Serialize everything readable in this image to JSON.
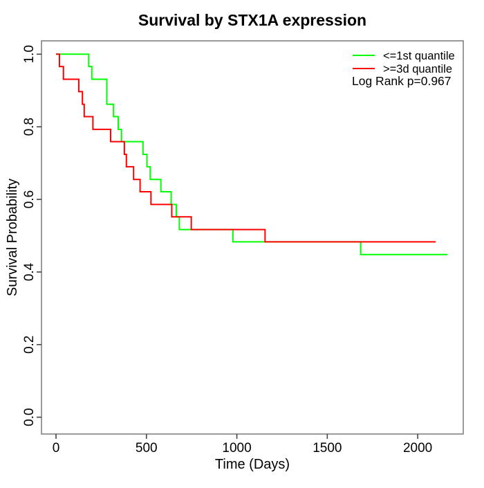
{
  "title": "Survival by STX1A expression",
  "legend": {
    "items": [
      {
        "label": "<=1st quantile",
        "color": "#00ff00"
      },
      {
        "label": ">=3d quantile",
        "color": "#ff0000"
      }
    ],
    "p_value_text": "Log Rank p=0.967"
  },
  "chart_data": {
    "type": "line",
    "step": true,
    "title": "Survival by STX1A expression",
    "xlabel": "Time (Days)",
    "ylabel": "Survival Probability",
    "xlim": [
      0,
      2250
    ],
    "ylim": [
      0.0,
      1.0
    ],
    "grid": false,
    "legend_position": "top-right",
    "x_ticks": {
      "values": [
        0,
        500,
        1000,
        1500,
        2000
      ],
      "labels": [
        "0",
        "500",
        "1000",
        "1500",
        "2000"
      ]
    },
    "y_ticks": {
      "values": [
        0.0,
        0.2,
        0.4,
        0.6,
        0.8,
        1.0
      ],
      "labels": [
        "0.0",
        "0.2",
        "0.4",
        "0.6",
        "0.8",
        "1.0"
      ]
    },
    "annotations": [
      "Log Rank p=0.967"
    ],
    "series": [
      {
        "name": "<=1st quantile",
        "color": "#00ff00",
        "end_time": 2165,
        "steps": [
          [
            0,
            1.0
          ],
          [
            181,
            0.966
          ],
          [
            198,
            0.931
          ],
          [
            281,
            0.862
          ],
          [
            318,
            0.828
          ],
          [
            344,
            0.793
          ],
          [
            362,
            0.759
          ],
          [
            481,
            0.724
          ],
          [
            503,
            0.69
          ],
          [
            521,
            0.655
          ],
          [
            580,
            0.621
          ],
          [
            637,
            0.586
          ],
          [
            665,
            0.552
          ],
          [
            682,
            0.517
          ],
          [
            978,
            0.483
          ],
          [
            1685,
            0.448
          ]
        ]
      },
      {
        "name": ">=3d quantile",
        "color": "#ff0000",
        "end_time": 2100,
        "steps": [
          [
            0,
            1.0
          ],
          [
            19,
            0.966
          ],
          [
            41,
            0.931
          ],
          [
            126,
            0.897
          ],
          [
            146,
            0.862
          ],
          [
            156,
            0.828
          ],
          [
            204,
            0.793
          ],
          [
            302,
            0.759
          ],
          [
            378,
            0.724
          ],
          [
            389,
            0.69
          ],
          [
            429,
            0.655
          ],
          [
            465,
            0.621
          ],
          [
            525,
            0.586
          ],
          [
            640,
            0.552
          ],
          [
            748,
            0.517
          ],
          [
            1156,
            0.483
          ]
        ]
      }
    ]
  }
}
